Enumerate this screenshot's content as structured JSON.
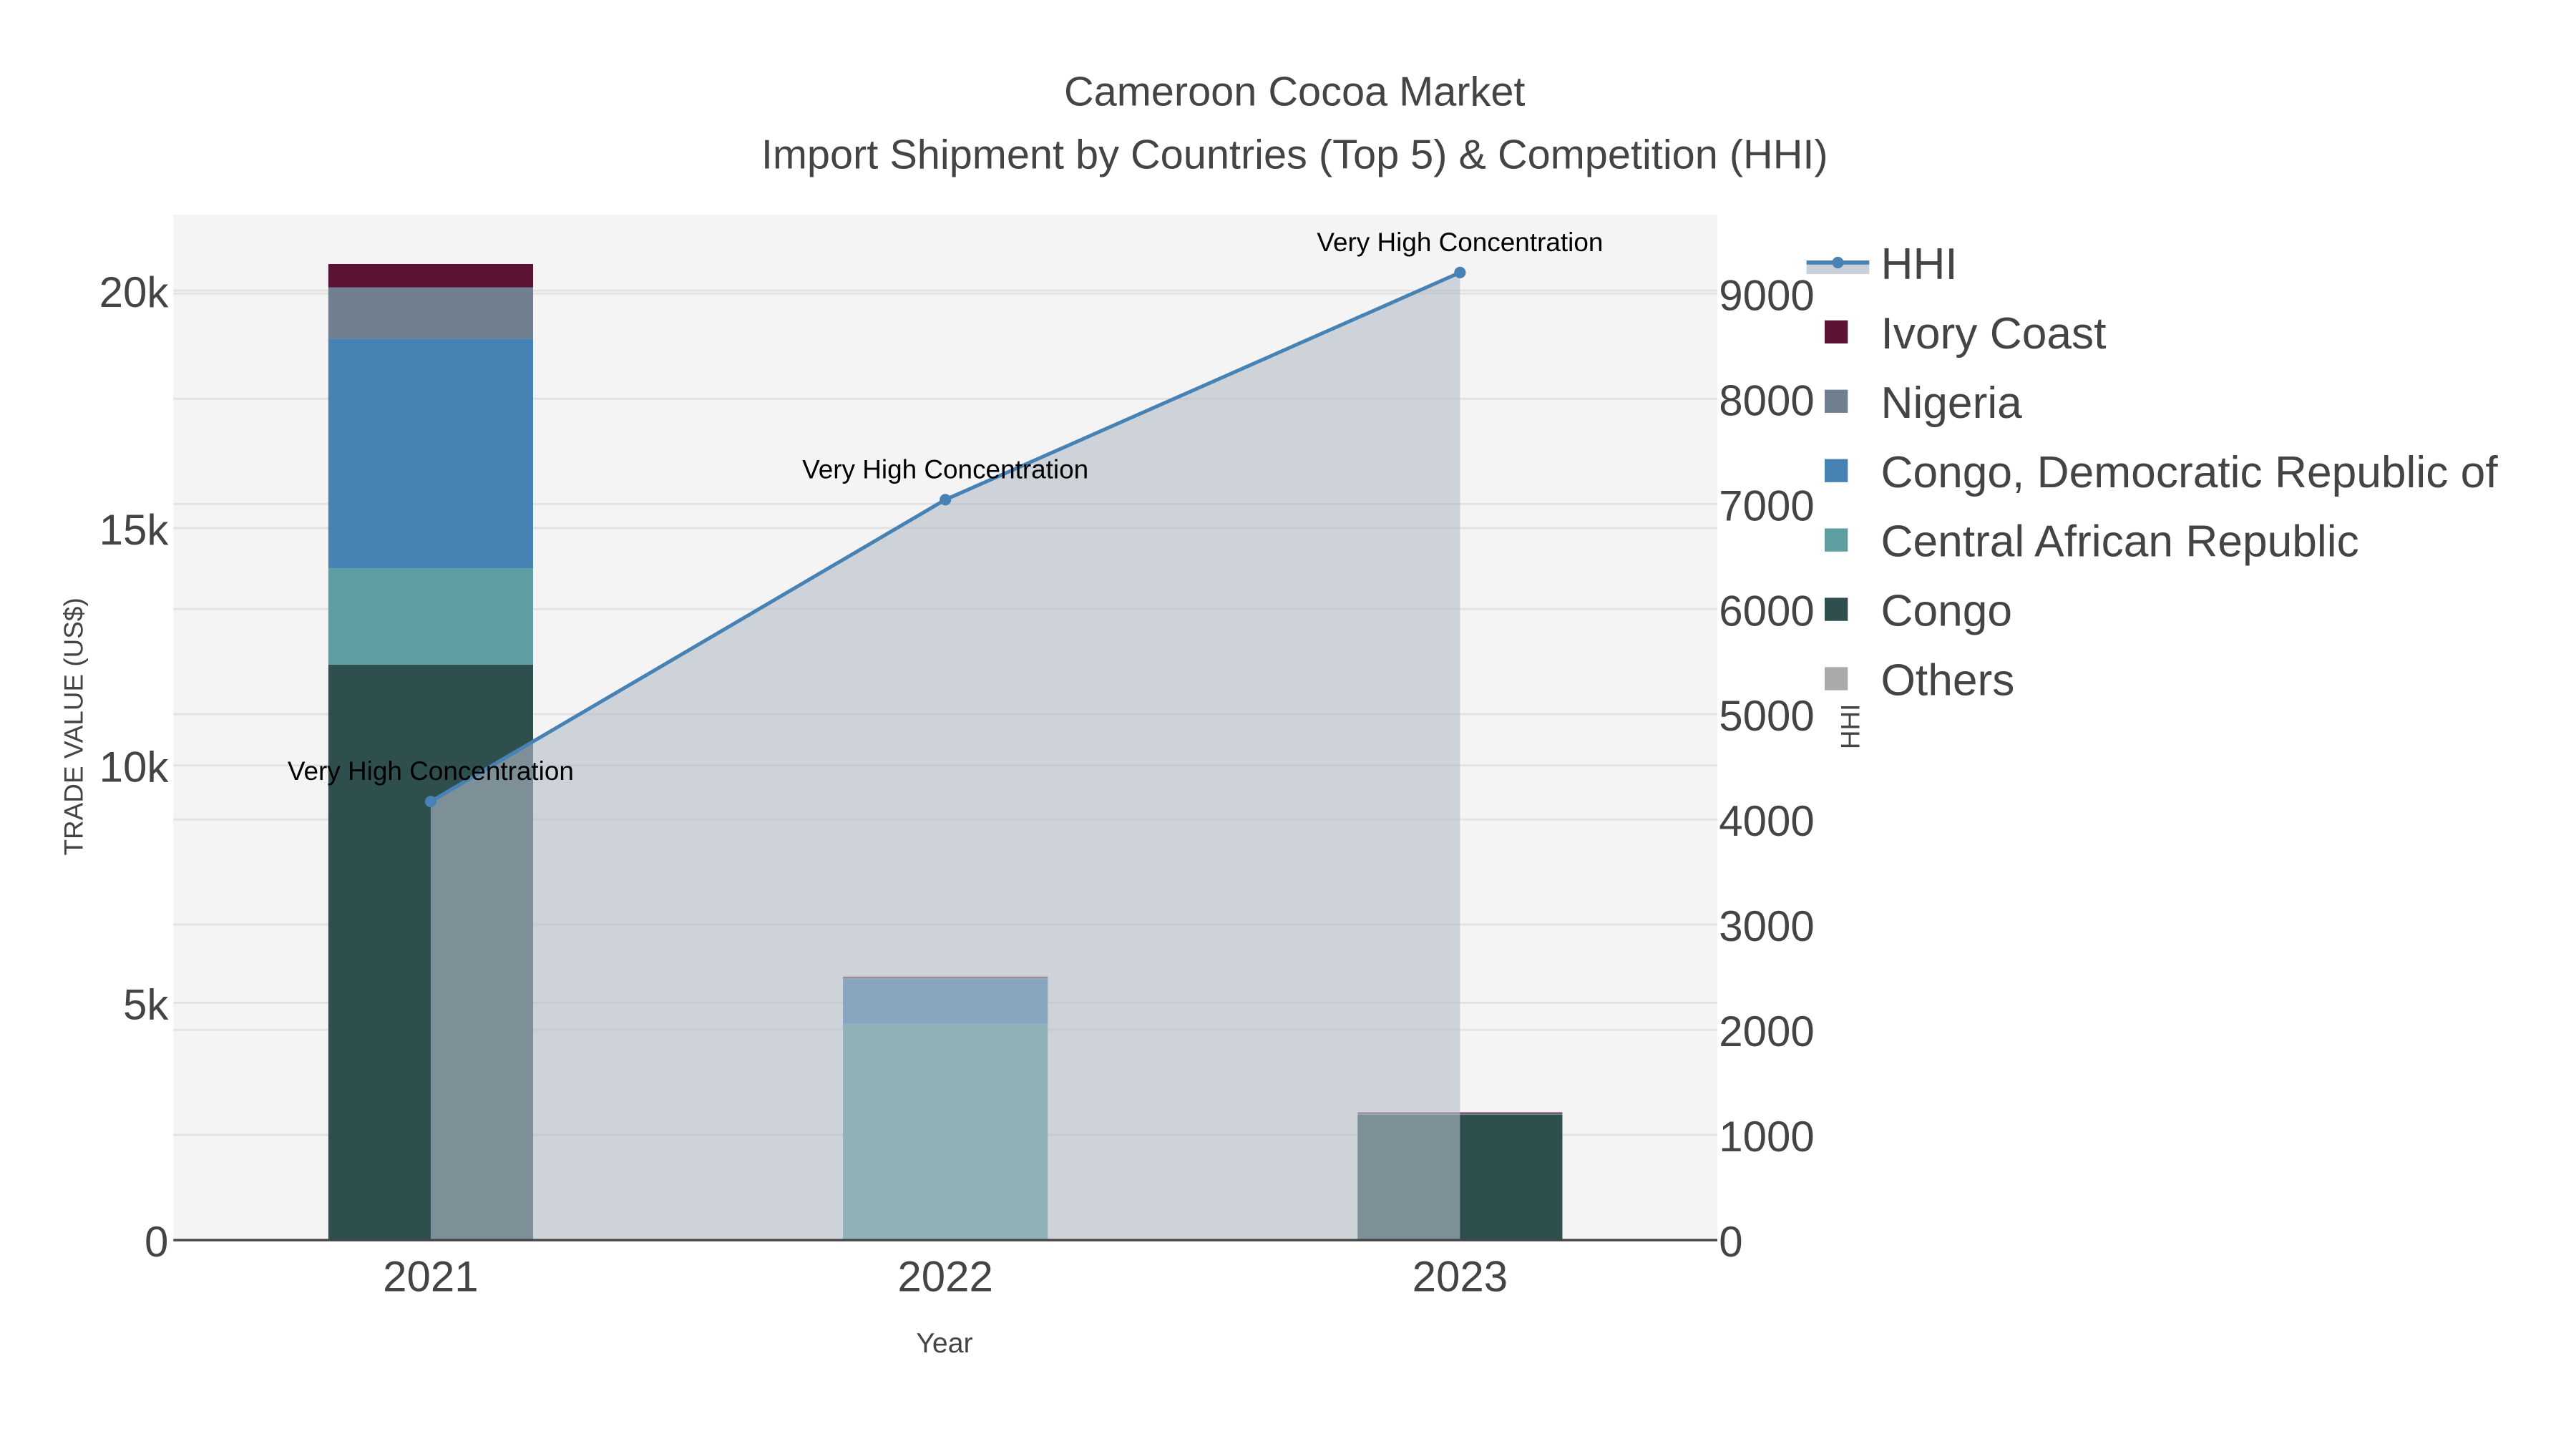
{
  "chart_data": {
    "type": "bar",
    "title": "Cameroon Cocoa Market",
    "subtitle": "Import Shipment by Countries (Top 5) & Competition (HHI)",
    "xlabel": "Year",
    "ylabel": "TRADE VALUE (US$)",
    "y2label": "HHI",
    "categories": [
      "2021",
      "2022",
      "2023"
    ],
    "ylim": [
      0,
      21600
    ],
    "y2lim": [
      0,
      9750
    ],
    "yticks": [
      {
        "v": 0,
        "label": "0"
      },
      {
        "v": 5000,
        "label": "5k"
      },
      {
        "v": 10000,
        "label": "10k"
      },
      {
        "v": 15000,
        "label": "15k"
      },
      {
        "v": 20000,
        "label": "20k"
      }
    ],
    "y2ticks": [
      {
        "v": 0,
        "label": "0"
      },
      {
        "v": 1000,
        "label": "1000"
      },
      {
        "v": 2000,
        "label": "2000"
      },
      {
        "v": 3000,
        "label": "3000"
      },
      {
        "v": 4000,
        "label": "4000"
      },
      {
        "v": 5000,
        "label": "5000"
      },
      {
        "v": 6000,
        "label": "6000"
      },
      {
        "v": 7000,
        "label": "7000"
      },
      {
        "v": 8000,
        "label": "8000"
      },
      {
        "v": 9000,
        "label": "9000"
      }
    ],
    "series": [
      {
        "name": "Others",
        "color": "#aaaaaa",
        "values": [
          0,
          0,
          0
        ]
      },
      {
        "name": "Congo",
        "color": "#2f4f4f",
        "values": [
          12120,
          0,
          2640
        ]
      },
      {
        "name": "Central African Republic",
        "color": "#5f9ea0",
        "values": [
          2030,
          4560,
          0
        ]
      },
      {
        "name": "Congo, Democratic Republic of",
        "color": "#4682b4",
        "values": [
          4840,
          940,
          0
        ]
      },
      {
        "name": "Nigeria",
        "color": "#708090",
        "values": [
          1080,
          30,
          30
        ]
      },
      {
        "name": "Ivory Coast",
        "color": "#5c1234",
        "values": [
          490,
          20,
          20
        ]
      }
    ],
    "hhi": {
      "name": "HHI",
      "color": "#4682b4",
      "values": [
        4170,
        7040,
        9200
      ],
      "annotations": [
        "Very High Concentration",
        "Very High Concentration",
        "Very High Concentration"
      ]
    },
    "legend": [
      "HHI",
      "Ivory Coast",
      "Nigeria",
      "Congo, Democratic Republic of",
      "Central African Republic",
      "Congo",
      "Others"
    ],
    "legend_position": "right",
    "grid": true
  }
}
